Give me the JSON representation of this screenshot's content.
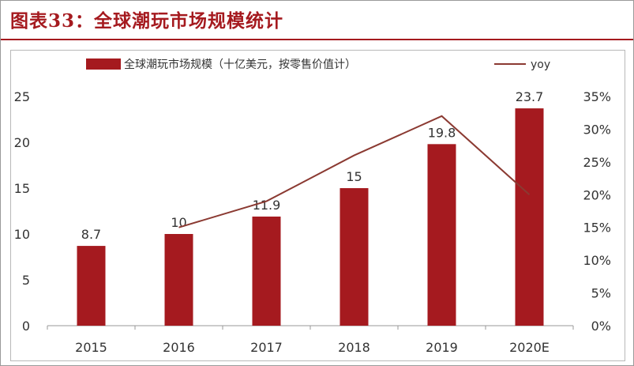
{
  "header": {
    "title": "图表33：全球潮玩市场规模统计"
  },
  "colors": {
    "accent": "#a51a1f",
    "bar": "#a51a1f",
    "line": "#8b3a32",
    "text": "#333333"
  },
  "chart_data": {
    "type": "bar",
    "categories": [
      "2015",
      "2016",
      "2017",
      "2018",
      "2019",
      "2020E"
    ],
    "series": [
      {
        "name": "全球潮玩市场规模（十亿美元，按零售价值计）",
        "type": "bar",
        "axis": "left",
        "values": [
          8.7,
          10,
          11.9,
          15,
          19.8,
          23.7
        ],
        "labels": [
          "8.7",
          "10",
          "11.9",
          "15",
          "19.8",
          "23.7"
        ]
      },
      {
        "name": "yoy",
        "type": "line",
        "axis": "right",
        "values": [
          null,
          15,
          19,
          26,
          32,
          20
        ]
      }
    ],
    "y_left": {
      "min": 0,
      "max": 25,
      "ticks": [
        "0",
        "5",
        "10",
        "15",
        "20",
        "25"
      ]
    },
    "y_right": {
      "min": 0,
      "max": 35,
      "ticks": [
        "0%",
        "5%",
        "10%",
        "15%",
        "20%",
        "25%",
        "30%",
        "35%"
      ]
    },
    "legend": {
      "position": "top"
    },
    "grid": false
  }
}
